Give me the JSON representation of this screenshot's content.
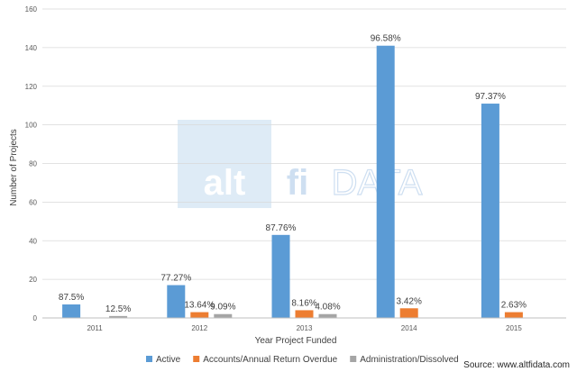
{
  "chart_data": {
    "type": "bar",
    "categories": [
      "2011",
      "2012",
      "2013",
      "2014",
      "2015"
    ],
    "series": [
      {
        "name": "Active",
        "color": "#5B9BD5",
        "values": [
          7,
          17,
          43,
          141,
          111
        ],
        "labels": [
          "87.5%",
          "77.27%",
          "87.76%",
          "96.58%",
          "97.37%"
        ]
      },
      {
        "name": "Accounts/Annual Return Overdue",
        "color": "#ED7D31",
        "values": [
          0,
          3,
          4,
          5,
          3
        ],
        "labels": [
          "",
          "13.64%",
          "8.16%",
          "3.42%",
          "2.63%"
        ]
      },
      {
        "name": "Administration/Dissolved",
        "color": "#A5A5A5",
        "values": [
          1,
          2,
          2,
          0,
          0
        ],
        "labels": [
          "12.5%",
          "9.09%",
          "4.08%",
          "",
          ""
        ]
      }
    ],
    "xlabel": "Year Project Funded",
    "ylabel": "Number of Projects",
    "ylim": [
      0,
      160
    ],
    "yticks": [
      0,
      20,
      40,
      60,
      80,
      100,
      120,
      140,
      160
    ],
    "grid": true,
    "legend": "bottom"
  },
  "source": "Source: www.altfidata.com",
  "watermark": {
    "text_alt": "alt",
    "text_fi": "fi",
    "text_data": "DATA"
  }
}
